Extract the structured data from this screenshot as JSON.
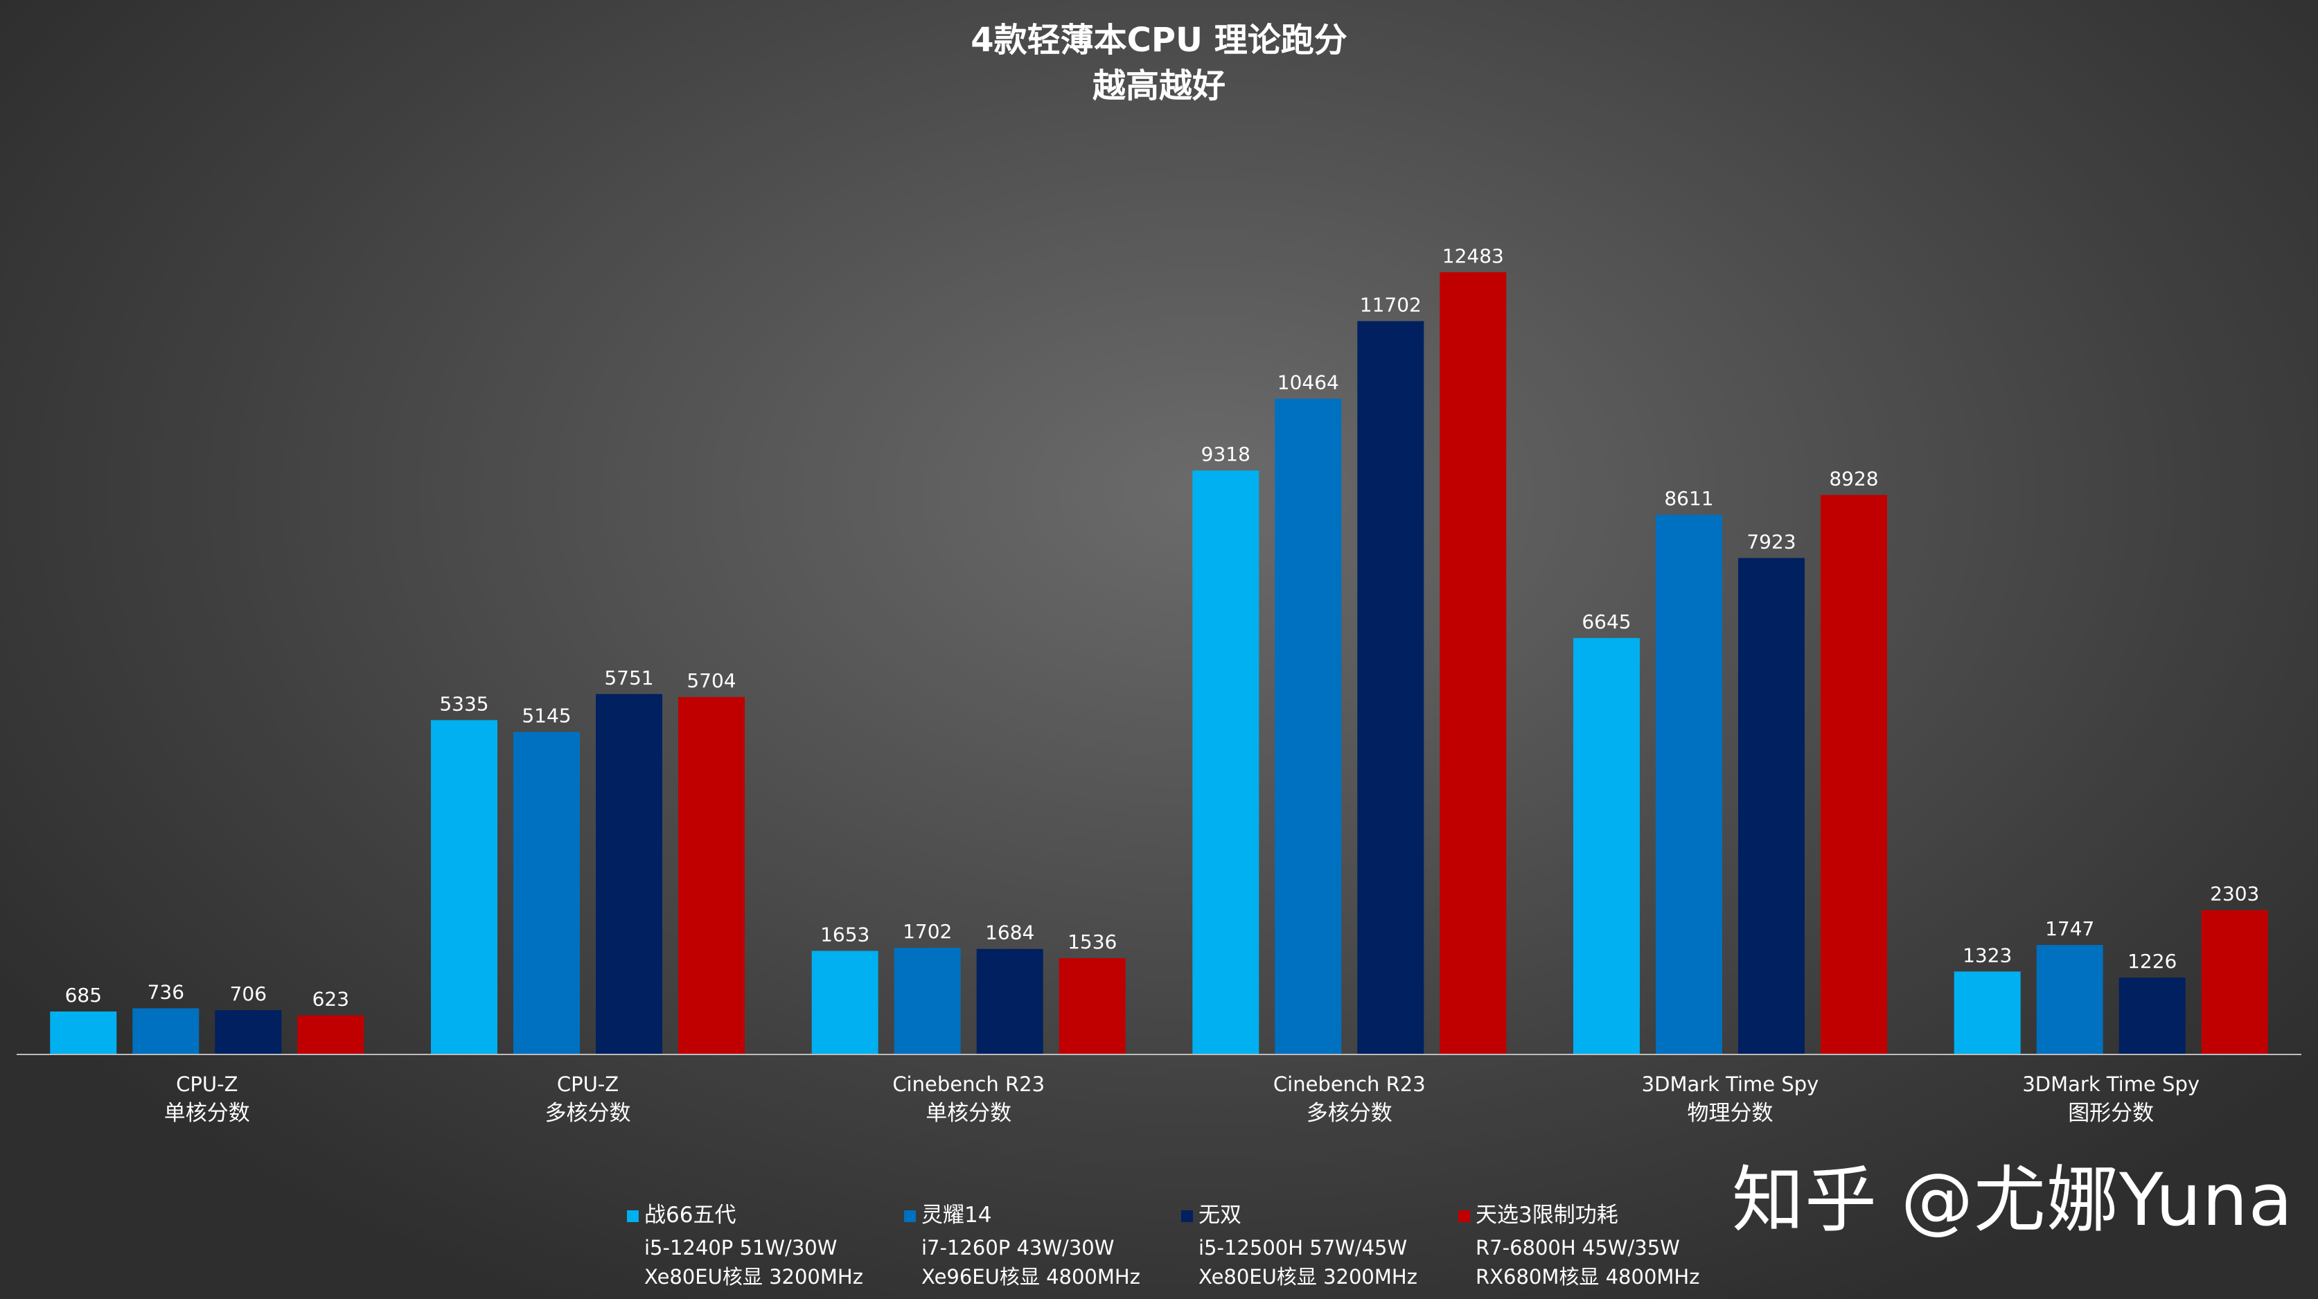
{
  "chart_data": {
    "type": "bar",
    "title": "4款轻薄本CPU 理论跑分",
    "subtitle": "越高越好",
    "categories": [
      {
        "line1": "CPU-Z",
        "line2": "单核分数"
      },
      {
        "line1": "CPU-Z",
        "line2": "多核分数"
      },
      {
        "line1": "Cinebench R23",
        "line2": "单核分数"
      },
      {
        "line1": "Cinebench R23",
        "line2": "多核分数"
      },
      {
        "line1": "3DMark Time Spy",
        "line2": "物理分数"
      },
      {
        "line1": "3DMark Time Spy",
        "line2": "图形分数"
      }
    ],
    "series": [
      {
        "name": "战66五代",
        "details": [
          "i5-1240P 51W/30W",
          "Xe80EU核显 3200MHz"
        ],
        "color": "#00b0f0",
        "values": [
          685,
          5335,
          1653,
          9318,
          6645,
          1323
        ]
      },
      {
        "name": "灵耀14",
        "details": [
          "i7-1260P 43W/30W",
          "Xe96EU核显 4800MHz"
        ],
        "color": "#0070c0",
        "values": [
          736,
          5145,
          1702,
          10464,
          8611,
          1747
        ]
      },
      {
        "name": "无双",
        "details": [
          "i5-12500H 57W/45W",
          "Xe80EU核显 3200MHz"
        ],
        "color": "#002060",
        "values": [
          706,
          5751,
          1684,
          11702,
          7923,
          1226
        ]
      },
      {
        "name": "天选3限制功耗",
        "details": [
          "R7-6800H 45W/35W",
          "RX680M核显 4800MHz"
        ],
        "color": "#c00000",
        "values": [
          623,
          5704,
          1536,
          12483,
          8928,
          2303
        ]
      }
    ],
    "xlabel": "",
    "ylabel": "",
    "ylim": [
      0,
      15500
    ],
    "grid": false,
    "legend": "bottom"
  },
  "watermark": "知乎 @尤娜Yuna"
}
